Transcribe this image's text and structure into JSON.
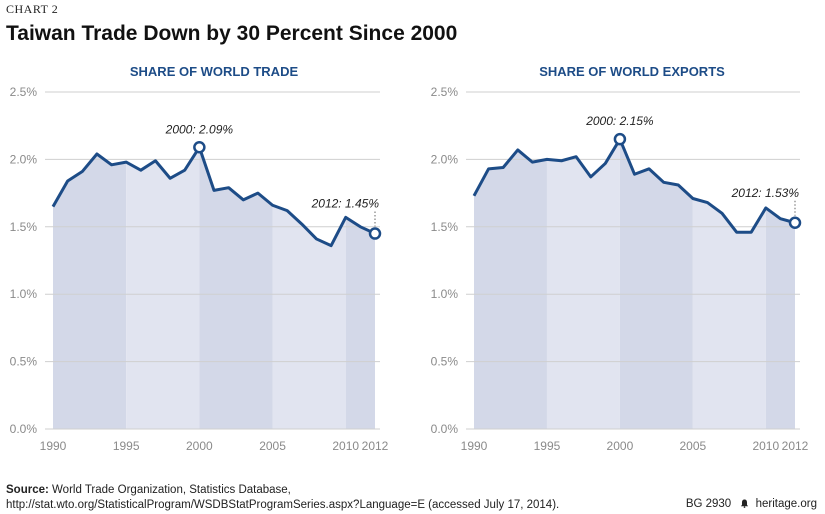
{
  "header": {
    "chart_label": "CHART 2",
    "title": "Taiwan Trade Down by 30 Percent Since 2000"
  },
  "colors": {
    "line": "#1d4c87",
    "band_dark": "#d3d8e8",
    "band_light": "#e1e4f0",
    "grid": "#cfcfcf",
    "axis_text": "#8a8a8a"
  },
  "chart_data": [
    {
      "type": "area",
      "title": "SHARE OF WORLD TRADE",
      "x": [
        1990,
        1991,
        1992,
        1993,
        1994,
        1995,
        1996,
        1997,
        1998,
        1999,
        2000,
        2001,
        2002,
        2003,
        2004,
        2005,
        2006,
        2007,
        2008,
        2009,
        2010,
        2011,
        2012
      ],
      "values": [
        1.65,
        1.84,
        1.91,
        2.04,
        1.96,
        1.98,
        1.92,
        1.99,
        1.86,
        1.92,
        2.09,
        1.77,
        1.79,
        1.7,
        1.75,
        1.66,
        1.62,
        1.52,
        1.41,
        1.36,
        1.57,
        1.5,
        1.45
      ],
      "ylim": [
        0,
        2.5
      ],
      "yticks": [
        "0.0%",
        "0.5%",
        "1.0%",
        "1.5%",
        "2.0%",
        "2.5%"
      ],
      "xticks": [
        "1990",
        "1995",
        "2000",
        "2005",
        "2010",
        "2012"
      ],
      "annotations": [
        {
          "x": 2000,
          "y": 2.09,
          "label": "2000: 2.09%"
        },
        {
          "x": 2012,
          "y": 1.45,
          "label": "2012: 1.45%"
        }
      ],
      "grid": true
    },
    {
      "type": "area",
      "title": "SHARE OF WORLD EXPORTS",
      "x": [
        1990,
        1991,
        1992,
        1993,
        1994,
        1995,
        1996,
        1997,
        1998,
        1999,
        2000,
        2001,
        2002,
        2003,
        2004,
        2005,
        2006,
        2007,
        2008,
        2009,
        2010,
        2011,
        2012
      ],
      "values": [
        1.73,
        1.93,
        1.94,
        2.07,
        1.98,
        2.0,
        1.99,
        2.02,
        1.87,
        1.97,
        2.15,
        1.89,
        1.93,
        1.83,
        1.81,
        1.71,
        1.68,
        1.6,
        1.46,
        1.46,
        1.64,
        1.56,
        1.53
      ],
      "ylim": [
        0,
        2.5
      ],
      "yticks": [
        "0.0%",
        "0.5%",
        "1.0%",
        "1.5%",
        "2.0%",
        "2.5%"
      ],
      "xticks": [
        "1990",
        "1995",
        "2000",
        "2005",
        "2010",
        "2012"
      ],
      "annotations": [
        {
          "x": 2000,
          "y": 2.15,
          "label": "2000: 2.15%"
        },
        {
          "x": 2012,
          "y": 1.53,
          "label": "2012: 1.53%"
        }
      ],
      "grid": true
    }
  ],
  "footer": {
    "source_label": "Source:",
    "source_text": " World Trade Organization, Statistics Database,",
    "source_url": "http://stat.wto.org/StatisticalProgram/WSDBStatProgramSeries.aspx?Language=E (accessed July 17, 2014).",
    "report_id": "BG 2930",
    "site": "heritage.org"
  }
}
